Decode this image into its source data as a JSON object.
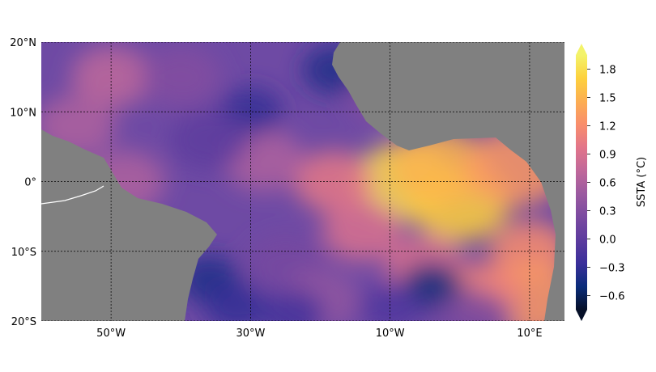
{
  "map": {
    "lon_range": [
      -60,
      15
    ],
    "lat_range": [
      -20,
      20
    ],
    "gridlines": true,
    "land_color": "#808080",
    "ocean_base_color": "#6e4aa4",
    "lon_ticks": [
      {
        "lon": -50,
        "label": "50°W"
      },
      {
        "lon": -30,
        "label": "30°W"
      },
      {
        "lon": -10,
        "label": "10°W"
      },
      {
        "lon": 10,
        "label": "10°E"
      }
    ],
    "lat_ticks": [
      {
        "lat": 20,
        "label": "20°N"
      },
      {
        "lat": 10,
        "label": "10°N"
      },
      {
        "lat": 0,
        "label": "0°"
      },
      {
        "lat": -10,
        "label": "10°S"
      },
      {
        "lat": -20,
        "label": "20°S"
      }
    ],
    "anomaly_features": [
      {
        "lon": -8,
        "lat": 0,
        "value": 1.8
      },
      {
        "lon": 0,
        "lat": -3,
        "value": 1.7
      },
      {
        "lon": -3,
        "lat": 2,
        "value": 1.5
      },
      {
        "lon": 8,
        "lat": 2,
        "value": 1.3
      },
      {
        "lon": 10,
        "lat": -10,
        "value": 1.2
      },
      {
        "lon": 10,
        "lat": -17,
        "value": 1.3
      },
      {
        "lon": -18,
        "lat": 0,
        "value": 1.0
      },
      {
        "lon": -14,
        "lat": -7,
        "value": 0.9
      },
      {
        "lon": -5,
        "lat": -12,
        "value": 0.9
      },
      {
        "lon": 3,
        "lat": -16,
        "value": 1.1
      },
      {
        "lon": -28,
        "lat": 3,
        "value": 0.6
      },
      {
        "lon": -50,
        "lat": 15,
        "value": 0.7
      },
      {
        "lon": -55,
        "lat": 8,
        "value": 0.6
      },
      {
        "lon": -48,
        "lat": 0,
        "value": 0.6
      },
      {
        "lon": -40,
        "lat": 15,
        "value": 0.3
      },
      {
        "lon": -25,
        "lat": -12,
        "value": 0.2
      },
      {
        "lon": -20,
        "lat": -17,
        "value": 0.4
      },
      {
        "lon": -36,
        "lat": -14,
        "value": -0.4
      },
      {
        "lon": -32,
        "lat": -18,
        "value": -0.3
      },
      {
        "lon": -24,
        "lat": -19,
        "value": -0.2
      },
      {
        "lon": -30,
        "lat": 10,
        "value": -0.3
      },
      {
        "lon": -18,
        "lat": 16,
        "value": -0.4
      },
      {
        "lon": -36,
        "lat": 6,
        "value": 0.0
      },
      {
        "lon": -4,
        "lat": -15,
        "value": -0.5
      },
      {
        "lon": -10,
        "lat": -18,
        "value": -0.1
      },
      {
        "lon": 2,
        "lat": -20,
        "value": 0.2
      },
      {
        "lon": -10,
        "lat": 12,
        "value": 0.3
      }
    ]
  },
  "colorbar": {
    "label": "SSTA (°C)",
    "vmin": -0.75,
    "vmax": 1.95,
    "ticks": [
      {
        "value": 1.8,
        "label": "1.8"
      },
      {
        "value": 1.5,
        "label": "1.5"
      },
      {
        "value": 1.2,
        "label": "1.2"
      },
      {
        "value": 0.9,
        "label": "0.9"
      },
      {
        "value": 0.6,
        "label": "0.6"
      },
      {
        "value": 0.3,
        "label": "0.3"
      },
      {
        "value": 0.0,
        "label": "0.0"
      },
      {
        "value": -0.3,
        "label": "−0.3"
      },
      {
        "value": -0.6,
        "label": "−0.6"
      }
    ],
    "colors": [
      "#061028",
      "#0a2c7a",
      "#3a2f9a",
      "#5c3b9e",
      "#7a4aa0",
      "#9b5aa0",
      "#c0689a",
      "#e2758a",
      "#f98e6c",
      "#fcae52",
      "#fdd13d",
      "#f3f36a"
    ]
  }
}
